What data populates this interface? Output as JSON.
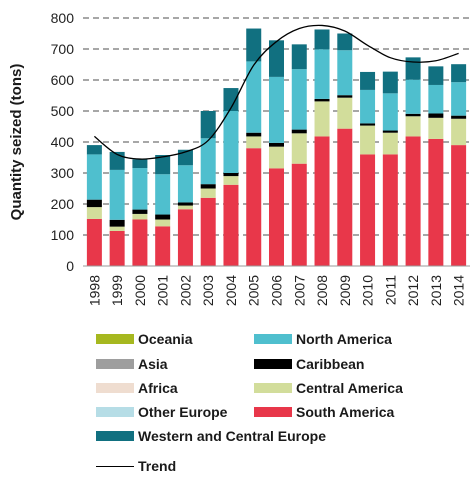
{
  "chart_data": {
    "type": "bar",
    "stacked": true,
    "ylabel": "Quantity seized (tons)",
    "xlabel": "",
    "ylim": [
      0,
      800
    ],
    "yticks": [
      0,
      100,
      200,
      300,
      400,
      500,
      600,
      700,
      800
    ],
    "grid": "horizontal dashed",
    "categories": [
      "1998",
      "1999",
      "2000",
      "2001",
      "2002",
      "2003",
      "2004",
      "2005",
      "2006",
      "2007",
      "2008",
      "2009",
      "2010",
      "2011",
      "2012",
      "2013",
      "2014"
    ],
    "series": [
      {
        "name": "South America",
        "color": "#e8374a",
        "values": [
          152,
          113,
          150,
          128,
          183,
          220,
          262,
          380,
          315,
          330,
          418,
          443,
          360,
          360,
          418,
          410,
          390
        ]
      },
      {
        "name": "Central America",
        "color": "#d2dd9b",
        "values": [
          38,
          14,
          18,
          22,
          12,
          30,
          28,
          38,
          70,
          98,
          113,
          100,
          93,
          70,
          65,
          68,
          85
        ]
      },
      {
        "name": "Caribbean",
        "color": "#000000",
        "values": [
          24,
          22,
          14,
          16,
          10,
          14,
          10,
          12,
          12,
          12,
          8,
          8,
          7,
          7,
          8,
          14,
          10
        ]
      },
      {
        "name": "Other Europe",
        "color": "#b6dde6",
        "values": [
          0,
          0,
          0,
          0,
          0,
          0,
          0,
          0,
          0,
          0,
          0,
          0,
          0,
          0,
          0,
          0,
          0
        ]
      },
      {
        "name": "Africa",
        "color": "#efddd0",
        "values": [
          0,
          0,
          0,
          0,
          0,
          0,
          0,
          0,
          0,
          0,
          0,
          0,
          0,
          0,
          0,
          0,
          0
        ]
      },
      {
        "name": "Asia",
        "color": "#9e9e9e",
        "values": [
          0,
          0,
          0,
          0,
          0,
          0,
          0,
          0,
          0,
          0,
          0,
          0,
          0,
          0,
          0,
          0,
          0
        ]
      },
      {
        "name": "North America",
        "color": "#4fbfce",
        "values": [
          146,
          161,
          134,
          130,
          120,
          148,
          200,
          230,
          213,
          195,
          160,
          145,
          108,
          120,
          110,
          92,
          108
        ]
      },
      {
        "name": "Western and Central Europe",
        "color": "#117080",
        "values": [
          30,
          58,
          28,
          62,
          50,
          88,
          74,
          106,
          118,
          80,
          64,
          54,
          58,
          70,
          72,
          60,
          58
        ]
      },
      {
        "name": "Oceania",
        "color": "#a6b81f",
        "values": [
          0,
          0,
          0,
          0,
          0,
          0,
          0,
          0,
          0,
          0,
          0,
          0,
          0,
          0,
          0,
          0,
          0
        ]
      }
    ],
    "trend": {
      "name": "Trend",
      "color": "#000000",
      "values": [
        418,
        360,
        345,
        352,
        368,
        405,
        510,
        648,
        724,
        766,
        776,
        758,
        712,
        672,
        658,
        662,
        686
      ]
    }
  },
  "legend": [
    {
      "label": "Oceania",
      "color": "#a6b81f"
    },
    {
      "label": "North America",
      "color": "#4fbfce"
    },
    {
      "label": "Asia",
      "color": "#9e9e9e"
    },
    {
      "label": "Caribbean",
      "color": "#000000"
    },
    {
      "label": "Africa",
      "color": "#efddd0"
    },
    {
      "label": "Central America",
      "color": "#d2dd9b"
    },
    {
      "label": "Other Europe",
      "color": "#b6dde6"
    },
    {
      "label": "South America",
      "color": "#e8374a"
    },
    {
      "label": "Western and Central Europe",
      "color": "#117080"
    },
    {
      "label": "Trend",
      "color": "#000000"
    }
  ]
}
